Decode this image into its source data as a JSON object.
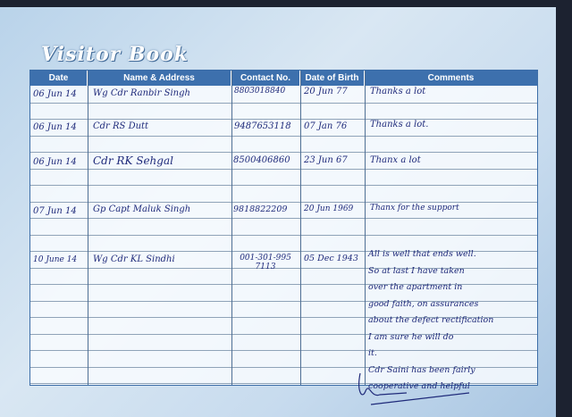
{
  "title": "Visitor Book",
  "columns": [
    "Date",
    "Name & Address",
    "Contact No.",
    "Date of Birth",
    "Comments"
  ],
  "rows": [
    {
      "date": "06 Jun 14",
      "name": "Wg Cdr Ranbir Singh",
      "contact": "8803018840",
      "dob": "20 Jun 77",
      "comments": [
        "Thanks a lot"
      ]
    },
    {
      "date": "06 Jun 14",
      "name": "Cdr RS Dutt",
      "contact": "9487653118",
      "dob": "07 Jan 76",
      "comments": [
        "Thanks a lot."
      ]
    },
    {
      "date": "06 Jun 14",
      "name": "Cdr RK Sehgal",
      "contact": "8500406860",
      "dob": "23 Jun 67",
      "comments": [
        "Thanx a lot"
      ]
    },
    {
      "date": "07 Jun 14",
      "name": "Gp Capt Maluk Singh",
      "contact": "9818822209",
      "dob": "20 Jun 1969",
      "comments": [
        "Thanx for the support"
      ]
    },
    {
      "date": "10 June 14",
      "name": "Wg Cdr KL Sindhi",
      "contact": "001-301-995 7113",
      "dob": "05 Dec 1943",
      "comments": [
        "All is well that ends well.",
        "So at last I have taken",
        "over the apartment in",
        "good faith, on assurances",
        "about the defect rectification",
        "I am sure he will do",
        "it.",
        "Cdr Saini has been fairly",
        "cooperative and helpful"
      ]
    }
  ]
}
